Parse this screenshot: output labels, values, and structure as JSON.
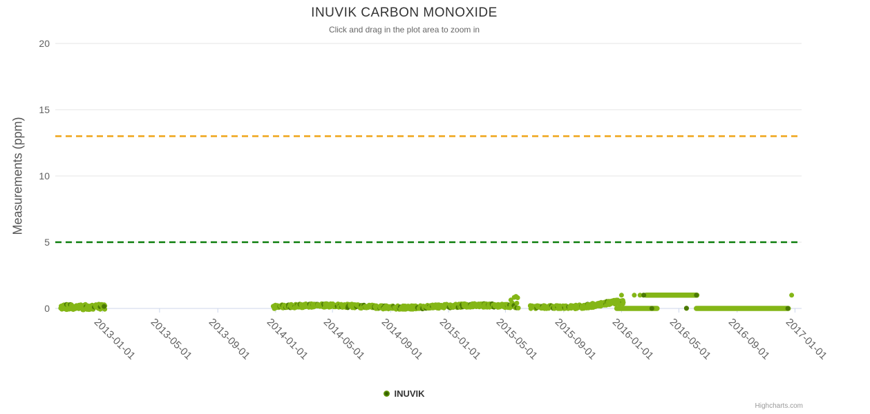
{
  "header": {
    "title": "INUVIK CARBON MONOXIDE",
    "subtitle": "Click and drag in the plot area to zoom in"
  },
  "legend": {
    "items": [
      {
        "label": "INUVIK"
      }
    ]
  },
  "credits": {
    "label": "Highcharts.com"
  },
  "chart_data": {
    "type": "scatter",
    "title": "INUVIK CARBON MONOXIDE",
    "subtitle": "Click and drag in the plot area to zoom in",
    "xlabel": "",
    "ylabel": "Measurements (ppm)",
    "ylim": [
      0,
      20
    ],
    "yticks": [
      0,
      5,
      10,
      15,
      20
    ],
    "xticks": [
      "2013-01-01",
      "2013-05-01",
      "2013-09-01",
      "2014-01-01",
      "2014-05-01",
      "2014-09-01",
      "2015-01-01",
      "2015-05-01",
      "2015-09-01",
      "2016-01-01",
      "2016-05-01",
      "2016-09-01",
      "2017-01-01"
    ],
    "x_range": [
      "2012-09-23",
      "2017-01-15"
    ],
    "grid": true,
    "legend_position": "bottom-center",
    "plot_lines": [
      {
        "value": 13,
        "color": "#efa418",
        "dash": "dash"
      },
      {
        "value": 5,
        "color": "#0b7d0b",
        "dash": "dash"
      }
    ],
    "colors": {
      "point": "#84b617",
      "point_dark": "#4c7a05",
      "grid": "#e6e6e6",
      "axis": "#ccd6eb",
      "legend_marker": "#6aa007",
      "legend_marker_center": "#335e00"
    },
    "series": [
      {
        "name": "INUVIK",
        "color": "#84b617",
        "marker_radius": 3.5,
        "segments": [
          {
            "kind": "scatter",
            "start": "2012-10-04",
            "end": "2013-01-06",
            "step_days": 1.0,
            "base": 0.1,
            "jitter": 0.22
          },
          {
            "kind": "scatter",
            "start": "2013-12-27",
            "end": "2015-05-12",
            "step_days": 0.8,
            "base": 0.15,
            "jitter": 0.14,
            "wave": [
              0.08,
              320,
              -0.6
            ]
          },
          {
            "kind": "scatter",
            "start": "2015-05-12",
            "end": "2015-05-30",
            "step_days": 1.4,
            "base": 0.45,
            "jitter": 0.5
          },
          {
            "kind": "scatter",
            "start": "2015-06-22",
            "end": "2015-09-22",
            "step_days": 0.9,
            "base": 0.1,
            "jitter": 0.12
          },
          {
            "kind": "scatter",
            "start": "2015-09-25",
            "end": "2016-01-06",
            "step_days": 0.8,
            "base": 0.3,
            "jitter": 0.16,
            "wave": [
              0.2,
              200,
              -1.57
            ]
          },
          {
            "kind": "run",
            "start": "2015-12-22",
            "end": "2016-03-16",
            "y": 0
          },
          {
            "kind": "run",
            "start": "2016-02-22",
            "end": "2016-06-08",
            "y": 1
          },
          {
            "kind": "run",
            "start": "2016-06-07",
            "end": "2016-12-18",
            "y": 0
          },
          {
            "kind": "points",
            "pts": [
              [
                "2016-01-01",
                1
              ],
              [
                "2016-01-28",
                1
              ],
              [
                "2016-02-09",
                1
              ],
              [
                "2016-02-16",
                1
              ],
              [
                "2016-05-17",
                0
              ],
              [
                "2016-12-25",
                1
              ]
            ]
          },
          {
            "kind": "points",
            "dark": true,
            "pts": [
              [
                "2013-01-04",
                0.15
              ],
              [
                "2016-02-17",
                1
              ],
              [
                "2016-06-07",
                1
              ],
              [
                "2016-03-05",
                0
              ],
              [
                "2016-12-17",
                0
              ],
              [
                "2016-05-17",
                0.02
              ]
            ]
          }
        ]
      }
    ]
  }
}
